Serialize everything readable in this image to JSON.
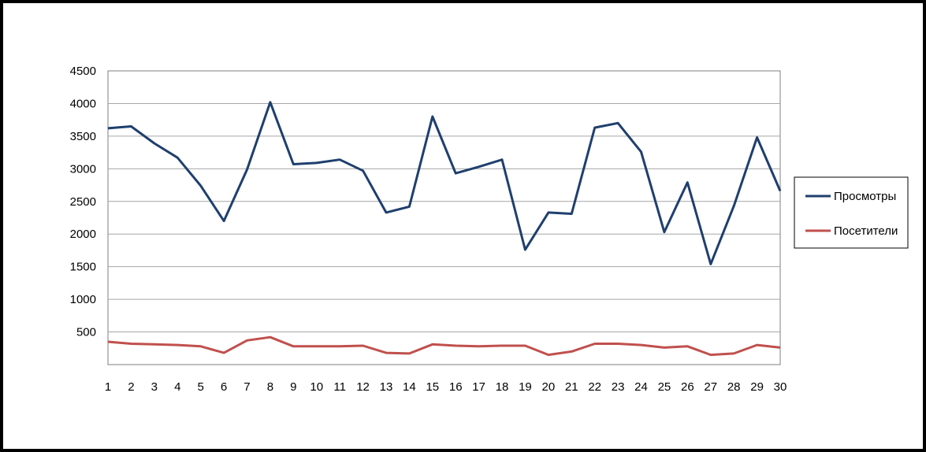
{
  "chart_data": {
    "type": "line",
    "title": "",
    "xlabel": "",
    "ylabel": "",
    "x": [
      1,
      2,
      3,
      4,
      5,
      6,
      7,
      8,
      9,
      10,
      11,
      12,
      13,
      14,
      15,
      16,
      17,
      18,
      19,
      20,
      21,
      22,
      23,
      24,
      25,
      26,
      27,
      28,
      29,
      30
    ],
    "x_tick_labels": [
      "1",
      "2",
      "3",
      "4",
      "5",
      "6",
      "7",
      "8",
      "9",
      "10",
      "11",
      "12",
      "13",
      "14",
      "15",
      "16",
      "17",
      "18",
      "19",
      "20",
      "21",
      "22",
      "23",
      "24",
      "25",
      "26",
      "27",
      "28",
      "29",
      "30"
    ],
    "y_ticks": [
      500,
      1000,
      1500,
      2000,
      2500,
      3000,
      3500,
      4000,
      4500
    ],
    "y_tick_labels": [
      "500",
      "1000",
      "1500",
      "2000",
      "2500",
      "3000",
      "3500",
      "4000",
      "4500"
    ],
    "ylim": [
      0,
      4500
    ],
    "grid": true,
    "legend_position": "right",
    "series": [
      {
        "name": "Просмотры",
        "color": "#1f3f6e",
        "values": [
          3620,
          3650,
          3390,
          3170,
          2740,
          2200,
          2990,
          4020,
          3070,
          3090,
          3140,
          2970,
          2330,
          2420,
          3800,
          2930,
          3030,
          3140,
          1760,
          2330,
          2310,
          3630,
          3700,
          3260,
          2030,
          2790,
          1540,
          2430,
          3480,
          2660
        ]
      },
      {
        "name": "Посетители",
        "color": "#c0504d",
        "values": [
          350,
          320,
          310,
          300,
          280,
          180,
          370,
          420,
          280,
          280,
          280,
          290,
          180,
          170,
          310,
          290,
          280,
          290,
          290,
          150,
          200,
          320,
          320,
          300,
          260,
          280,
          150,
          170,
          300,
          260
        ]
      }
    ]
  }
}
